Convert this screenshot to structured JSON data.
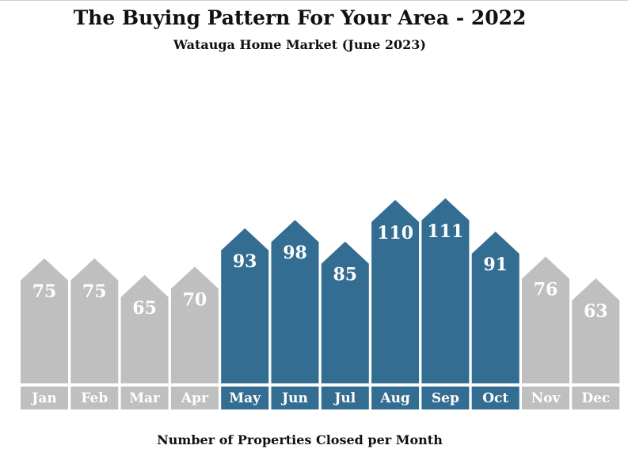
{
  "title": "The Buying Pattern For Your Area - 2022",
  "subtitle": "Watauga Home Market (June 2023)",
  "footer": "Number of Properties Closed per Month",
  "colors": {
    "highlight": "#336d91",
    "base": "#bfbfbf",
    "label_text": "#ffffff"
  },
  "chart_data": {
    "type": "bar",
    "title": "The Buying Pattern For Your Area - 2022",
    "subtitle": "Watauga Home Market (June 2023)",
    "xlabel": "Number of Properties Closed per Month",
    "ylabel": "",
    "categories": [
      "Jan",
      "Feb",
      "Mar",
      "Apr",
      "May",
      "Jun",
      "Jul",
      "Aug",
      "Sep",
      "Oct",
      "Nov",
      "Dec"
    ],
    "values": [
      75,
      75,
      65,
      70,
      93,
      98,
      85,
      110,
      111,
      91,
      76,
      63
    ],
    "highlighted": [
      false,
      false,
      false,
      false,
      true,
      true,
      true,
      true,
      true,
      true,
      false,
      false
    ],
    "grid": false,
    "legend": "none"
  }
}
